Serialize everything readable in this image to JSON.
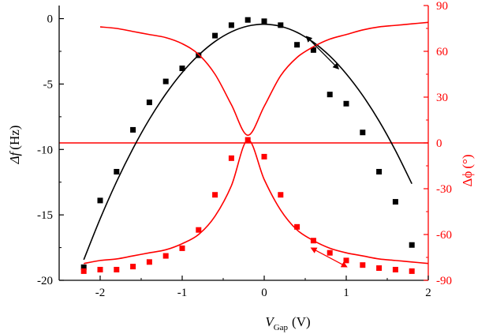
{
  "chart_data": {
    "type": "scatter",
    "title": "",
    "xlabel": {
      "main": "V",
      "sub": "Gap",
      "unit": "(V)"
    },
    "ylabel_left": {
      "main": "Δf",
      "unit": "(Hz)"
    },
    "ylabel_right": {
      "main": "Δϕ",
      "unit": "(°)"
    },
    "xlim": [
      -2.5,
      2.0
    ],
    "ylim_left": [
      -20,
      1.0
    ],
    "ylim_right": [
      -90,
      90
    ],
    "xticks": [
      -2,
      -1,
      0,
      1,
      2
    ],
    "yticks_left": [
      0,
      -5,
      -10,
      -15,
      -20
    ],
    "yticks_right": [
      90,
      60,
      30,
      0,
      -30,
      -60,
      -90
    ],
    "grid": false,
    "colors": {
      "left": "#000000",
      "right": "#ff0000"
    },
    "series": [
      {
        "axis": "left",
        "kind": "points",
        "color": "#000000",
        "x": [
          -2.2,
          -2.0,
          -1.8,
          -1.6,
          -1.4,
          -1.2,
          -1.0,
          -0.8,
          -0.6,
          -0.4,
          -0.2,
          0.0,
          0.2,
          0.4,
          0.6,
          0.8,
          1.0,
          1.2,
          1.4,
          1.6,
          1.8
        ],
        "y": [
          -19.0,
          -13.9,
          -11.7,
          -8.5,
          -6.4,
          -4.8,
          -3.8,
          -2.8,
          -1.3,
          -0.5,
          -0.1,
          -0.2,
          -0.5,
          -2.0,
          -2.4,
          -5.8,
          -6.5,
          -8.7,
          -11.7,
          -14.0,
          -17.3
        ]
      },
      {
        "axis": "left",
        "kind": "line",
        "color": "#000000",
        "x": [
          -2.2,
          -2.0,
          -1.8,
          -1.6,
          -1.4,
          -1.2,
          -1.0,
          -0.8,
          -0.6,
          -0.4,
          -0.2,
          0.0,
          0.2,
          0.4,
          0.6,
          0.8,
          1.0,
          1.2,
          1.4,
          1.6,
          1.8
        ],
        "y": [
          -18.43,
          -15.3,
          -12.46,
          -9.93,
          -7.69,
          -5.76,
          -4.12,
          -2.79,
          -1.75,
          -1.01,
          -0.57,
          -0.43,
          -0.59,
          -1.05,
          -1.81,
          -2.86,
          -4.22,
          -5.87,
          -7.82,
          -10.08,
          -12.62
        ]
      },
      {
        "axis": "right",
        "kind": "points",
        "color": "#ff0000",
        "x": [
          -2.2,
          -2.0,
          -1.8,
          -1.6,
          -1.4,
          -1.2,
          -1.0,
          -0.8,
          -0.6,
          -0.4,
          -0.2,
          0.0,
          0.2,
          0.4,
          0.6,
          0.8,
          1.0,
          1.2,
          1.4,
          1.6,
          1.8
        ],
        "y": [
          -84,
          -83,
          -83,
          -81,
          -78,
          -74,
          -69,
          -57,
          -34,
          -10,
          2,
          -9,
          -34,
          -55,
          -64,
          -72,
          -77,
          -80,
          -82,
          -83,
          -84
        ]
      },
      {
        "axis": "right",
        "kind": "line",
        "color": "#ff0000",
        "x": [
          -2.2,
          -2.0,
          -1.8,
          -1.6,
          -1.4,
          -1.2,
          -1.0,
          -0.8,
          -0.6,
          -0.4,
          -0.2,
          0.0,
          0.2,
          0.4,
          0.6,
          0.8,
          1.0,
          1.2,
          1.4,
          1.6,
          1.8,
          2.0
        ],
        "y": [
          -79,
          -77,
          -76,
          -74,
          -72,
          -70,
          -66,
          -60,
          -48,
          -28,
          2,
          -24,
          -44,
          -57,
          -64,
          -69,
          -72,
          -74,
          -76,
          -77,
          -78,
          -79
        ]
      },
      {
        "axis": "right",
        "kind": "line",
        "color": "#ff0000",
        "x": [
          -2.0,
          -1.8,
          -1.6,
          -1.4,
          -1.2,
          -1.0,
          -0.8,
          -0.6,
          -0.4,
          -0.2,
          0.0,
          0.2,
          0.4,
          0.6,
          0.8,
          1.0,
          1.2,
          1.4,
          1.6,
          1.8,
          2.0
        ],
        "y": [
          76,
          75,
          73,
          71,
          69,
          65,
          58,
          45,
          25,
          5,
          24,
          44,
          56,
          63,
          68,
          71,
          74,
          76,
          77,
          78,
          79
        ]
      }
    ],
    "reference_lines": [
      {
        "axis": "right",
        "y": 0,
        "color": "#ff0000"
      }
    ],
    "annotations": [
      {
        "type": "double-arrow",
        "axis": "left",
        "color": "#000000",
        "from": [
          0.52,
          -1.4
        ],
        "to": [
          0.9,
          -3.8
        ]
      },
      {
        "type": "double-arrow",
        "axis": "right",
        "color": "#ff0000",
        "from": [
          0.58,
          -69
        ],
        "to": [
          1.0,
          -81
        ]
      }
    ]
  }
}
